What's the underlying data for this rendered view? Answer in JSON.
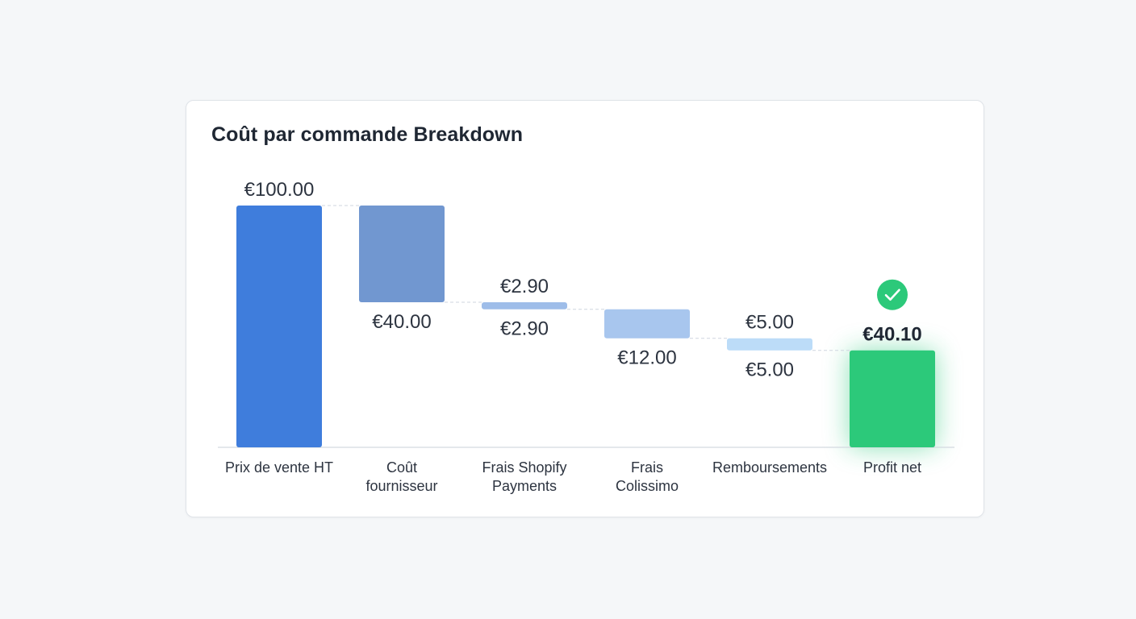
{
  "chart_data": {
    "type": "bar",
    "subtype": "waterfall",
    "title": "Coût par commande Breakdown",
    "currency": "€",
    "ylim": [
      0,
      100
    ],
    "grid": false,
    "legend": "none",
    "steps": [
      {
        "category": [
          "Prix de vente HT"
        ],
        "kind": "total",
        "value": 100.0,
        "top_label": "€100.00",
        "bottom_label": "",
        "color": "#3f7ddc"
      },
      {
        "category": [
          "Coût",
          "fournisseur"
        ],
        "kind": "decrease",
        "value": 40.0,
        "top_label": "",
        "bottom_label": "€40.00",
        "color": "#7197d0"
      },
      {
        "category": [
          "Frais Shopify",
          "Payments"
        ],
        "kind": "decrease",
        "value": 2.9,
        "top_label": "€2.90",
        "bottom_label": "€2.90",
        "color": "#9ebde9"
      },
      {
        "category": [
          "Frais",
          "Colissimo"
        ],
        "kind": "decrease",
        "value": 12.0,
        "top_label": "",
        "bottom_label": "€12.00",
        "color": "#a8c6ee"
      },
      {
        "category": [
          "Remboursements"
        ],
        "kind": "decrease",
        "value": 5.0,
        "top_label": "€5.00",
        "bottom_label": "€5.00",
        "color": "#bcdcf8"
      },
      {
        "category": [
          "Profit net"
        ],
        "kind": "total",
        "value": 40.1,
        "top_label": "€40.10",
        "bottom_label": "",
        "color": "#2cc97a",
        "highlight": true,
        "icon": "check-circle-icon"
      }
    ]
  }
}
